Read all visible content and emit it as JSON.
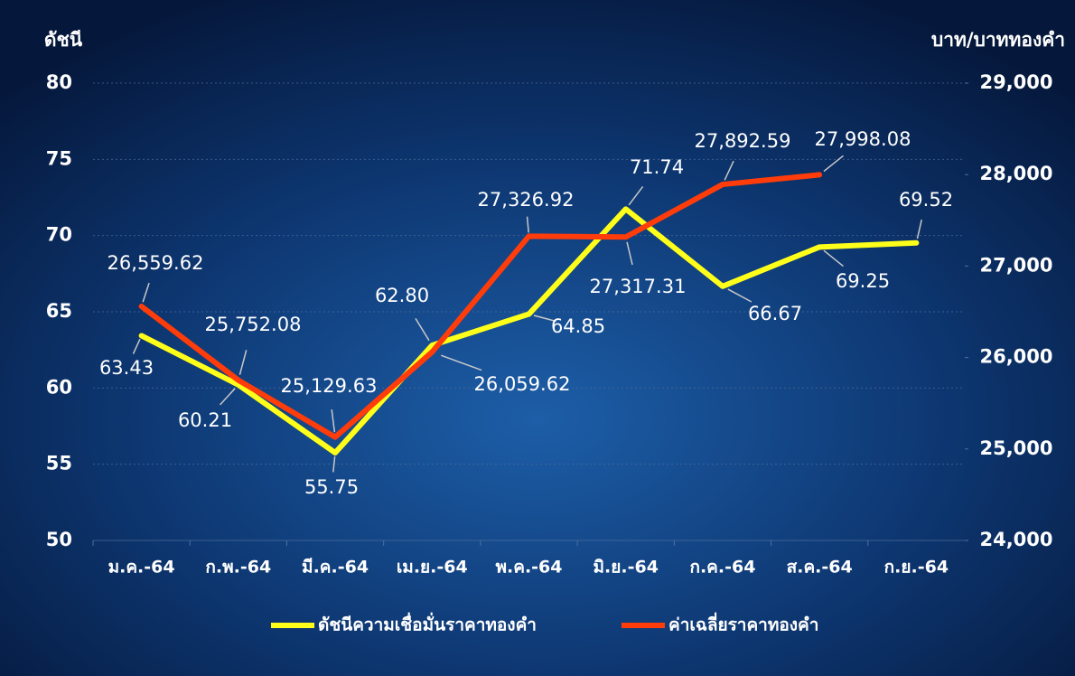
{
  "chart_data": {
    "type": "line",
    "y_label": "ดัชนี",
    "y2_label": "บาท/บาททองคำ",
    "categories": [
      "ม.ค.-64",
      "ก.พ.-64",
      "มี.ค.-64",
      "เม.ย.-64",
      "พ.ค.-64",
      "มิ.ย.-64",
      "ก.ค.-64",
      "ส.ค.-64",
      "ก.ย.-64"
    ],
    "series": [
      {
        "name": "ดัชนีความเชื่อมั่นราคาทองคำ",
        "color": "#ffff1a",
        "axis": "y",
        "values": [
          63.43,
          60.21,
          55.75,
          62.8,
          64.85,
          71.74,
          66.67,
          69.25,
          69.52
        ],
        "value_labels": [
          "63.43",
          "60.21",
          "55.75",
          "62.80",
          "64.85",
          "71.74",
          "66.67",
          "69.25",
          "69.52"
        ]
      },
      {
        "name": "ค่าเฉลี่ยราคาทองคำ",
        "color": "#ff3c0a",
        "axis": "y2",
        "values": [
          26559.62,
          25752.08,
          25129.63,
          26059.62,
          27326.92,
          27317.31,
          27892.59,
          27998.08,
          null
        ],
        "value_labels": [
          "26,559.62",
          "25,752.08",
          "25,129.63",
          "26,059.62",
          "27,326.92",
          "27,317.31",
          "27,892.59",
          "27,998.08",
          null
        ]
      }
    ],
    "ylim": [
      50,
      80
    ],
    "yticks": [
      50,
      55,
      60,
      65,
      70,
      75,
      80
    ],
    "y2lim": [
      24000,
      29000
    ],
    "y2ticks": [
      {
        "value": 24000,
        "label": "24,000"
      },
      {
        "value": 25000,
        "label": "25,000"
      },
      {
        "value": 26000,
        "label": "26,000"
      },
      {
        "value": 27000,
        "label": "27,000"
      },
      {
        "value": 28000,
        "label": "28,000"
      },
      {
        "value": 29000,
        "label": "29,000"
      }
    ],
    "grid": true,
    "legend": "bottom"
  }
}
